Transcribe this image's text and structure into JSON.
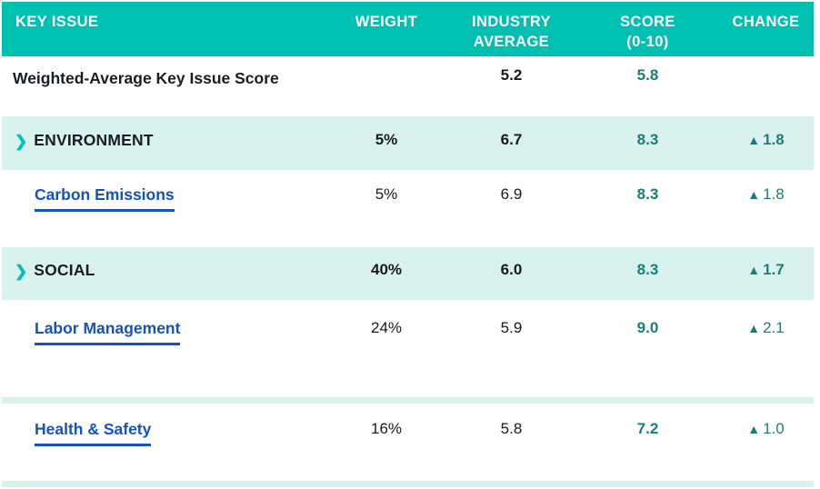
{
  "colors": {
    "header_background": "#00C1B1",
    "section_row_background": "#D9F2EE",
    "score_teal": "#13807A",
    "change_teal": "#1F7F78",
    "link_blue": "#1551C6",
    "text_dark": "#181D23",
    "number_black": "#1A1A1A"
  },
  "header": {
    "key_issue": "KEY ISSUE",
    "weight": "WEIGHT",
    "industry_average_line1": "INDUSTRY",
    "industry_average_line2": "AVERAGE",
    "score_line1": "SCORE",
    "score_line2": "(0-10)",
    "change": "CHANGE"
  },
  "rows": [
    {
      "type": "summary",
      "label": "Weighted-Average Key Issue Score",
      "weight": "",
      "industry_avg": "5.2",
      "score": "5.8",
      "change_icon": "",
      "change": ""
    },
    {
      "type": "section",
      "expand_icon": "❯",
      "label": "ENVIRONMENT",
      "weight": "5%",
      "industry_avg": "6.7",
      "score": "8.3",
      "change_icon": "▲",
      "change": "1.8"
    },
    {
      "type": "link",
      "label": "Carbon Emissions",
      "weight": "5%",
      "industry_avg": "6.9",
      "score": "8.3",
      "change_icon": "▲",
      "change": "1.8"
    },
    {
      "type": "section",
      "expand_icon": "❯",
      "label": "SOCIAL",
      "weight": "40%",
      "industry_avg": "6.0",
      "score": "8.3",
      "change_icon": "▲",
      "change": "1.7"
    },
    {
      "type": "link",
      "label": "Labor Management",
      "weight": "24%",
      "industry_avg": "5.9",
      "score": "9.0",
      "change_icon": "▲",
      "change": "2.1"
    },
    {
      "type": "link",
      "label": "Health & Safety",
      "weight": "16%",
      "industry_avg": "5.8",
      "score": "7.2",
      "change_icon": "▲",
      "change": "1.0"
    }
  ]
}
